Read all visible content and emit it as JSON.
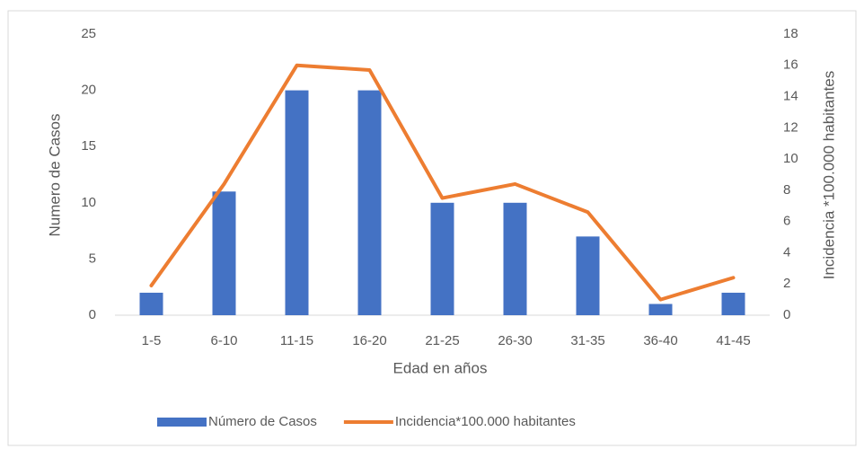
{
  "chart_data": {
    "type": "bar",
    "x_label": "Edad en años",
    "y_label": "Numero de Casos",
    "y2_label": "Incidencia *100.000 habitantes",
    "categories": [
      "1-5",
      "6-10",
      "11-15",
      "16-20",
      "21-25",
      "26-30",
      "31-35",
      "36-40",
      "41-45"
    ],
    "series": [
      {
        "name": "Número de Casos",
        "type": "bar",
        "color": "#4472c4",
        "values": [
          2,
          11,
          20,
          20,
          10,
          10,
          7,
          1,
          2
        ]
      },
      {
        "name": "Incidencia*100.000 habitantes",
        "type": "line",
        "axis": "y2",
        "color": "#ed7d31",
        "values": [
          1.9,
          8.4,
          16.0,
          15.7,
          7.5,
          8.4,
          6.6,
          1.0,
          2.4
        ]
      }
    ],
    "ylim": [
      0,
      25
    ],
    "yticks": [
      0,
      5,
      10,
      15,
      20,
      25
    ],
    "y2lim": [
      0,
      18
    ],
    "y2ticks": [
      0,
      2,
      4,
      6,
      8,
      10,
      12,
      14,
      16,
      18
    ],
    "legend": "bottom",
    "grid": false
  }
}
